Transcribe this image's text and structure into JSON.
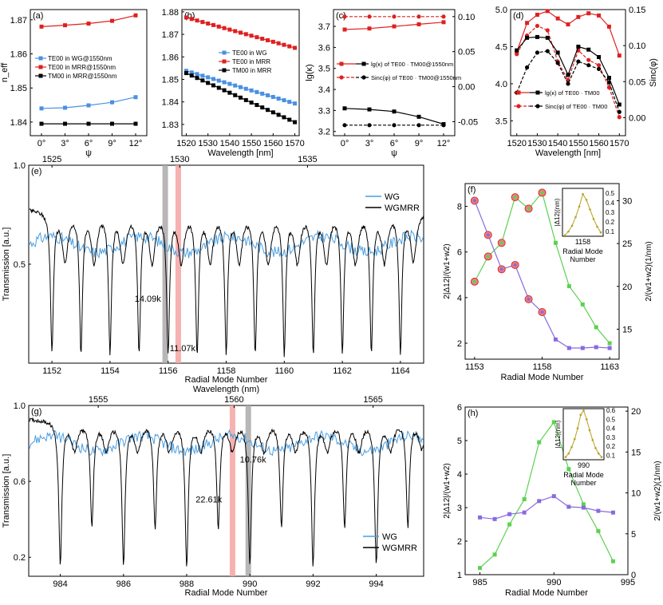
{
  "figure": {
    "type": "multi-panel scientific figure"
  },
  "chart_data": [
    {
      "id": "a",
      "type": "line",
      "panel_label": "(a)",
      "xlabel": "ψ",
      "ylabel": "n_eff",
      "categories": [
        "0°",
        "3°",
        "6°",
        "9°",
        "12°"
      ],
      "ylim": [
        1.836,
        1.873
      ],
      "yticks": [
        "1.84",
        "1.85",
        "1.86",
        "1.87"
      ],
      "ytick_values": [
        1.84,
        1.85,
        1.86,
        1.87
      ],
      "legend": [
        "TE00 in WG@1550nm",
        "TE00 in MRR@1550nm",
        "TM00 in MRR@1550nm"
      ],
      "legend_position": "center-left",
      "series": [
        {
          "name": "TE00 in WG@1550nm",
          "color": "#4a90e2",
          "values": [
            1.844,
            1.8442,
            1.8449,
            1.8458,
            1.8473
          ]
        },
        {
          "name": "TE00 in MRR@1550nm",
          "color": "#e02020",
          "values": [
            1.868,
            1.8684,
            1.8689,
            1.8697,
            1.8713
          ]
        },
        {
          "name": "TM00 in MRR@1550nm",
          "color": "#000000",
          "values": [
            1.8395,
            1.8395,
            1.8395,
            1.8395,
            1.8395
          ]
        }
      ]
    },
    {
      "id": "b",
      "type": "line",
      "panel_label": "(b)",
      "xlabel": "Wavelength [nm]",
      "x": [
        1520,
        1522.5,
        1525,
        1527.5,
        1530,
        1532.5,
        1535,
        1537.5,
        1540,
        1542.5,
        1545,
        1547.5,
        1550,
        1552.5,
        1555,
        1557.5,
        1560,
        1562.5,
        1565,
        1567.5,
        1570
      ],
      "xlim": [
        1518,
        1572
      ],
      "xticks": [
        "1520",
        "1530",
        "1540",
        "1550",
        "1560",
        "1570"
      ],
      "xtick_values": [
        1520,
        1530,
        1540,
        1550,
        1560,
        1570
      ],
      "ylim": [
        1.825,
        1.881
      ],
      "yticks": [
        "1.83",
        "1.84",
        "1.85",
        "1.86",
        "1.87",
        "1.88"
      ],
      "ytick_values": [
        1.83,
        1.84,
        1.85,
        1.86,
        1.87,
        1.88
      ],
      "legend": [
        "TE00 in WG",
        "TE00 in MRR",
        "TM00 in MRR"
      ],
      "legend_position": "center-right",
      "series": [
        {
          "name": "TE00 in WG",
          "color": "#4a90e2",
          "start": 1.8538,
          "end": 1.8393
        },
        {
          "name": "TE00 in MRR",
          "color": "#e02020",
          "start": 1.8775,
          "end": 1.864
        },
        {
          "name": "TM00 in MRR",
          "color": "#000000",
          "start": 1.8528,
          "end": 1.831
        }
      ]
    },
    {
      "id": "c",
      "type": "line",
      "panel_label": "(c)",
      "xlabel": "ψ",
      "ylabel_left": "lg(κ)",
      "ylabel_right": "",
      "categories": [
        "0°",
        "3°",
        "6°",
        "9°",
        "12°"
      ],
      "ylim_left": [
        3.18,
        3.78
      ],
      "yticks_left": [
        "3.2",
        "3.3",
        "3.4",
        "3.5",
        "3.6",
        "3.7"
      ],
      "ytick_values_left": [
        3.2,
        3.3,
        3.4,
        3.5,
        3.6,
        3.7
      ],
      "ylim_right": [
        -0.07,
        0.11
      ],
      "yticks_right": [
        "-0.05",
        "0.00",
        "0.05",
        "0.10"
      ],
      "ytick_values_right": [
        -0.05,
        0.0,
        0.05,
        0.1
      ],
      "legend": [
        "lg(κ) of TE00 · TM00@1550nm",
        "Sinc(φ) of TE00 · TM00@1550nm"
      ],
      "series": [
        {
          "name": "lg(κ) TE·TM",
          "axis": "left",
          "color": "#e02020",
          "dashed": false,
          "values": [
            3.685,
            3.69,
            3.7,
            3.71,
            3.72
          ]
        },
        {
          "name": "Sinc(φ) TE·TM",
          "axis": "right",
          "color": "#e02020",
          "dashed": true,
          "values": [
            0.1,
            0.1,
            0.1,
            0.1,
            0.1
          ]
        },
        {
          "name": "lg(κ) black",
          "axis": "left",
          "color": "#000000",
          "dashed": false,
          "values": [
            3.31,
            3.305,
            3.295,
            3.27,
            3.235
          ]
        },
        {
          "name": "Sinc(φ) black",
          "axis": "left",
          "color": "#000000",
          "dashed": true,
          "values": [
            3.23,
            3.23,
            3.23,
            3.23,
            3.23
          ]
        }
      ]
    },
    {
      "id": "d",
      "type": "line",
      "panel_label": "(d)",
      "xlabel": "Wavelength [nm]",
      "ylabel_right": "Sinc(φ)",
      "x": [
        1520,
        1525,
        1530,
        1535,
        1540,
        1545,
        1550,
        1555,
        1560,
        1565,
        1570
      ],
      "xlim": [
        1517,
        1573
      ],
      "xticks": [
        "1520",
        "1530",
        "1540",
        "1550",
        "1560",
        "1570"
      ],
      "xtick_values": [
        1520,
        1530,
        1540,
        1550,
        1560,
        1570
      ],
      "ylim_left": [
        3.3,
        5.0
      ],
      "yticks_left": [
        "3.5",
        "4.0",
        "4.5",
        "5.0"
      ],
      "ytick_values_left": [
        3.5,
        4.0,
        4.5,
        5.0
      ],
      "ylim_right": [
        -0.025,
        0.15
      ],
      "yticks_right": [
        "0.00",
        "0.05",
        "0.10",
        "0.15"
      ],
      "ytick_values_right": [
        0.0,
        0.05,
        0.1,
        0.15
      ],
      "legend": [
        "lg(κ) of TE00 · TM00",
        "Sinc(φ) of TE00 · TM00"
      ],
      "series": [
        {
          "name": "lg(κ) red",
          "axis": "left",
          "color": "#e02020",
          "dashed": false,
          "values": [
            4.43,
            4.82,
            4.93,
            4.98,
            4.88,
            4.8,
            4.9,
            4.95,
            4.92,
            4.77,
            4.38
          ]
        },
        {
          "name": "Sinc(φ) red",
          "axis": "left",
          "color": "#e02020",
          "dashed": true,
          "values": [
            4.4,
            4.65,
            4.78,
            4.72,
            4.3,
            4.05,
            4.45,
            4.32,
            4.25,
            3.95,
            3.55
          ]
        },
        {
          "name": "lg(κ) black",
          "axis": "left",
          "color": "#000000",
          "dashed": false,
          "values": [
            4.45,
            4.62,
            4.63,
            4.62,
            4.42,
            4.12,
            4.5,
            4.46,
            4.36,
            4.08,
            3.72
          ]
        },
        {
          "name": "Sinc(φ) black",
          "axis": "left",
          "color": "#000000",
          "dashed": true,
          "values": [
            3.88,
            4.22,
            4.42,
            4.44,
            4.28,
            4.0,
            4.3,
            4.25,
            4.2,
            4.02,
            3.62
          ]
        }
      ]
    },
    {
      "id": "e",
      "type": "line",
      "panel_label": "(e)",
      "xlabel": "Radial Mode Number",
      "ylabel": "Transmission [a.u.]",
      "top_xlabel": "Wavelength (nm)",
      "xlim": [
        1151.2,
        1164.8
      ],
      "xticks": [
        "1152",
        "1154",
        "1156",
        "1158",
        "1160",
        "1162",
        "1164"
      ],
      "xtick_values": [
        1152,
        1154,
        1156,
        1158,
        1160,
        1162,
        1164
      ],
      "top_xticks": [
        "1525",
        "1530",
        "1535"
      ],
      "top_xtick_values": [
        1152.0,
        1156.4,
        1160.8
      ],
      "ylim": [
        0.0,
        1.0
      ],
      "yticks": [
        "0.5",
        "1.0"
      ],
      "ytick_values": [
        0.5,
        1.0
      ],
      "legend": [
        "WG",
        "WGMRR"
      ],
      "resonances": [
        1152.0,
        1153.0,
        1154.0,
        1155.0,
        1156.0,
        1157.0,
        1158.0,
        1159.0,
        1160.0,
        1161.0,
        1162.0,
        1163.0,
        1164.0
      ],
      "wg_level": 0.6,
      "highlights": [
        {
          "x": 1155.9,
          "color": "#aaaaaa"
        },
        {
          "x": 1156.35,
          "color": "#f5a3a3"
        }
      ],
      "annotations": [
        {
          "x": 1155.3,
          "y": 0.31,
          "text": "14.09k"
        },
        {
          "x": 1156.5,
          "y": 0.06,
          "text": "11.07k"
        }
      ]
    },
    {
      "id": "f",
      "type": "line",
      "panel_label": "(f)",
      "xlabel": "Radial Mode Number",
      "ylabel_left": "2|Δ12|/(w1+w2)",
      "ylabel_right": "2/(w1+w2)(1/nm)",
      "x": [
        1153,
        1154,
        1155,
        1156,
        1157,
        1158,
        1159,
        1160,
        1161,
        1162,
        1163
      ],
      "xlim": [
        1152.3,
        1163.7
      ],
      "xticks": [
        "1153",
        "1158",
        "1163"
      ],
      "xtick_values": [
        1153,
        1158,
        1163
      ],
      "ylim_left": [
        1.3,
        9.0
      ],
      "yticks_left": [
        "2",
        "4",
        "6",
        "8"
      ],
      "ytick_values_left": [
        2,
        4,
        6,
        8
      ],
      "ylim_right": [
        11.5,
        32.0
      ],
      "yticks_right": [
        "15",
        "20",
        "25",
        "30"
      ],
      "ytick_values_right": [
        15,
        20,
        25,
        30
      ],
      "series": [
        {
          "name": "2|Δ12|/(w1+w2)",
          "axis": "left",
          "color": "#5bd24f",
          "values": [
            4.7,
            5.8,
            6.4,
            8.4,
            7.9,
            8.6,
            6.4,
            4.5,
            3.7,
            2.7,
            2.0
          ]
        },
        {
          "name": "2/(w1+w2)",
          "axis": "right",
          "color": "#8a6ae0",
          "values": [
            30.0,
            26.0,
            22.0,
            22.5,
            18.5,
            17.0,
            13.8,
            12.8,
            12.8,
            12.9,
            12.8
          ]
        }
      ],
      "inset": {
        "xlabel": "Radial Mode Number",
        "ylabel": "|Δ12|(nm)",
        "xtick": "1158",
        "yticks": [
          "0.1",
          "0.2",
          "0.3",
          "0.4",
          "0.5"
        ],
        "ytick_values": [
          0.1,
          0.2,
          0.3,
          0.4,
          0.5
        ],
        "ylim": [
          0.05,
          0.55
        ],
        "values": [
          0.06,
          0.1,
          0.16,
          0.25,
          0.36,
          0.49,
          0.43,
          0.33,
          0.23,
          0.15,
          0.09
        ]
      }
    },
    {
      "id": "g",
      "type": "line",
      "panel_label": "(g)",
      "xlabel": "Radial Mode Number",
      "ylabel": "Transmission [a.u.]",
      "top_xlabel": "",
      "xlim": [
        983.0,
        995.5
      ],
      "xticks": [
        "984",
        "986",
        "988",
        "990",
        "992",
        "994"
      ],
      "xtick_values": [
        984,
        986,
        988,
        990,
        992,
        994
      ],
      "top_xticks": [
        "1555",
        "1560",
        "1565"
      ],
      "top_xtick_values": [
        985.2,
        989.5,
        993.9
      ],
      "ylim": [
        0.1,
        1.0
      ],
      "yticks": [
        "0.2",
        "0.6",
        "1.0"
      ],
      "ytick_values": [
        0.2,
        0.6,
        1.0
      ],
      "legend": [
        "WG",
        "WGMRR"
      ],
      "resonances": [
        984.0,
        985.0,
        986.0,
        987.0,
        988.0,
        989.0,
        990.0,
        991.0,
        992.0,
        993.0,
        994.0,
        995.0
      ],
      "wg_level": 0.8,
      "highlights": [
        {
          "x": 989.45,
          "color": "#f5a3a3"
        },
        {
          "x": 989.95,
          "color": "#aaaaaa"
        }
      ],
      "annotations": [
        {
          "x": 990.1,
          "y": 0.7,
          "text": "10.76k"
        },
        {
          "x": 988.7,
          "y": 0.49,
          "text": "22.61k"
        }
      ]
    },
    {
      "id": "h",
      "type": "line",
      "panel_label": "(h)",
      "xlabel": "Radial Mode Number",
      "ylabel_left": "2|Δ12|/(w1+w2)",
      "ylabel_right": "2/(w1+w2)(1/nm)",
      "x": [
        985,
        986,
        987,
        988,
        989,
        990,
        991,
        992,
        993,
        994
      ],
      "xlim": [
        984.0,
        995.0
      ],
      "xticks": [
        "985",
        "990",
        "995"
      ],
      "xtick_values": [
        985,
        990,
        995
      ],
      "ylim_left": [
        1.0,
        6.0
      ],
      "yticks_left": [
        "1",
        "2",
        "3",
        "4",
        "5",
        "6"
      ],
      "ytick_values_left": [
        1,
        2,
        3,
        4,
        5,
        6
      ],
      "ylim_right": [
        0.0,
        20.5
      ],
      "yticks_right": [
        "0",
        "5",
        "10",
        "15",
        "20"
      ],
      "ytick_values_right": [
        0,
        5,
        10,
        15,
        20
      ],
      "series": [
        {
          "name": "2|Δ12|/(w1+w2)",
          "axis": "left",
          "color": "#5bd24f",
          "values": [
            1.2,
            1.6,
            2.5,
            3.25,
            4.95,
            5.55,
            4.15,
            3.1,
            2.3,
            1.4
          ]
        },
        {
          "name": "2/(w1+w2)",
          "axis": "right",
          "color": "#8a6ae0",
          "values": [
            7.0,
            6.8,
            7.4,
            7.6,
            9.0,
            9.6,
            8.3,
            8.2,
            7.8,
            7.6
          ]
        }
      ],
      "inset": {
        "xlabel": "Radial Mode Number",
        "ylabel": "|Δ12|(nm)",
        "xtick": "990",
        "yticks": [
          "0.1",
          "0.2",
          "0.3",
          "0.4",
          "0.5",
          "0.6"
        ],
        "ytick_values": [
          0.1,
          0.2,
          0.3,
          0.4,
          0.5,
          0.6
        ],
        "ylim": [
          0.05,
          0.62
        ],
        "values": [
          0.08,
          0.12,
          0.19,
          0.28,
          0.4,
          0.55,
          0.6,
          0.5,
          0.38,
          0.27,
          0.18,
          0.12,
          0.08
        ]
      }
    }
  ]
}
